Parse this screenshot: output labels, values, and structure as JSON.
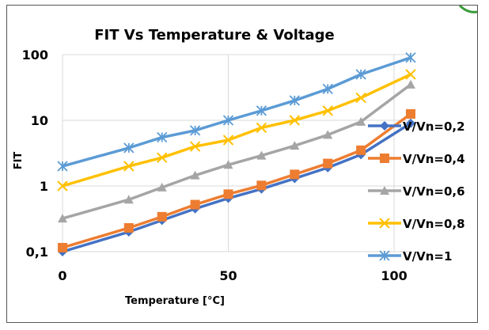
{
  "chart_data": {
    "type": "line",
    "title": "FIT Vs Temperature & Voltage",
    "xlabel": "Temperature [°C]",
    "ylabel": "FIT",
    "xlim": [
      0,
      105
    ],
    "ylim": [
      0.1,
      100
    ],
    "yscale": "log",
    "grid": true,
    "legend_position": "right",
    "x_ticks": [
      {
        "value": 0,
        "label": "0"
      },
      {
        "value": 50,
        "label": "50"
      },
      {
        "value": 100,
        "label": "100"
      }
    ],
    "y_ticks": [
      {
        "value": 0.1,
        "label": "0,1"
      },
      {
        "value": 1,
        "label": "1"
      },
      {
        "value": 10,
        "label": "10"
      },
      {
        "value": 100,
        "label": "100"
      }
    ],
    "x": [
      0,
      20,
      30,
      40,
      50,
      60,
      70,
      80,
      90,
      105
    ],
    "series": [
      {
        "name": "V/Vn=0,2",
        "color": "#4472c4",
        "marker": "diamond",
        "values": [
          0.1,
          0.2,
          0.3,
          0.45,
          0.65,
          0.9,
          1.3,
          1.9,
          3.0,
          9.0
        ]
      },
      {
        "name": "V/Vn=0,4",
        "color": "#ed7d31",
        "marker": "square",
        "values": [
          0.115,
          0.23,
          0.34,
          0.52,
          0.75,
          1.02,
          1.5,
          2.2,
          3.5,
          12.5
        ]
      },
      {
        "name": "V/Vn=0,6",
        "color": "#a5a5a5",
        "marker": "triangle",
        "values": [
          0.32,
          0.62,
          0.95,
          1.45,
          2.1,
          2.9,
          4.1,
          6.0,
          9.5,
          35
        ]
      },
      {
        "name": "V/Vn=0,8",
        "color": "#ffc000",
        "marker": "x",
        "values": [
          1.0,
          2.0,
          2.7,
          4.0,
          5.0,
          7.7,
          10.0,
          14.0,
          22.0,
          50
        ]
      },
      {
        "name": "V/Vn=1",
        "color": "#5b9bd5",
        "marker": "star",
        "values": [
          2.0,
          3.8,
          5.5,
          7.0,
          10.0,
          14.0,
          20.0,
          30.0,
          50.0,
          90
        ]
      }
    ]
  }
}
